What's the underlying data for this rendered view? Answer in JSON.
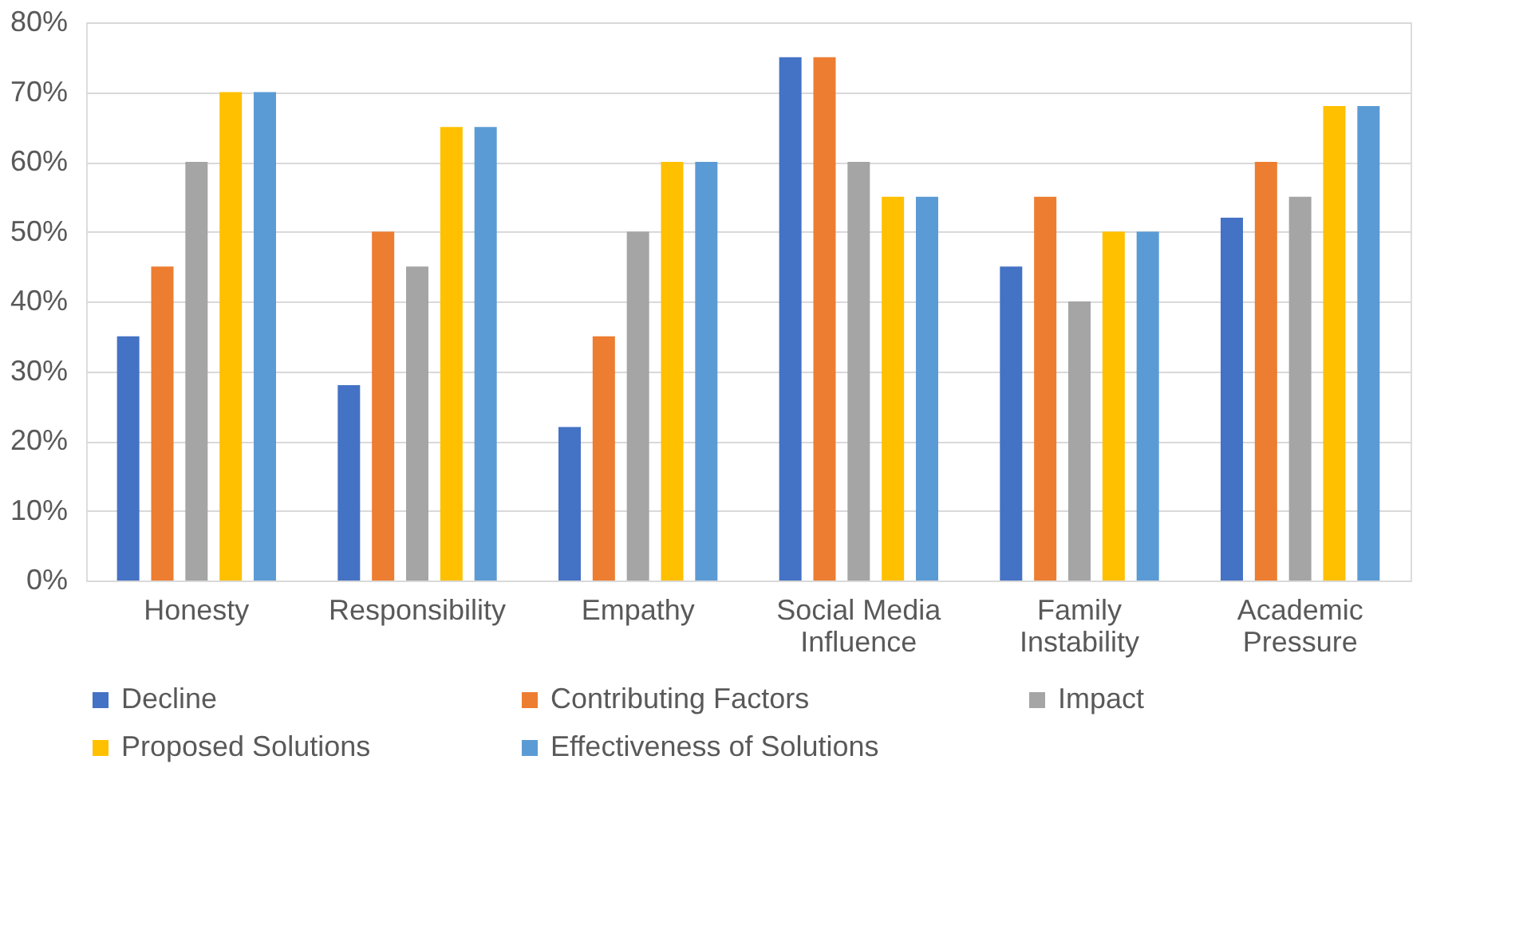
{
  "chart_data": {
    "type": "bar",
    "categories": [
      "Honesty",
      "Responsibility",
      "Empathy",
      "Social Media Influence",
      "Family Instability",
      "Academic Pressure"
    ],
    "series": [
      {
        "name": "Decline",
        "color": "#4472c4",
        "values": [
          35,
          28,
          22,
          75,
          45,
          52
        ]
      },
      {
        "name": "Contributing Factors",
        "color": "#ed7d31",
        "values": [
          45,
          50,
          35,
          75,
          55,
          60
        ]
      },
      {
        "name": "Impact",
        "color": "#a5a5a5",
        "values": [
          60,
          45,
          50,
          60,
          40,
          55
        ]
      },
      {
        "name": "Proposed Solutions",
        "color": "#ffc000",
        "values": [
          70,
          65,
          60,
          55,
          50,
          68
        ]
      },
      {
        "name": "Effectiveness of Solutions",
        "color": "#5b9bd5",
        "values": [
          70,
          65,
          60,
          55,
          50,
          68
        ]
      }
    ],
    "ylim": [
      0,
      80
    ],
    "yticks": [
      {
        "value": 0,
        "label": "0%"
      },
      {
        "value": 10,
        "label": "10%"
      },
      {
        "value": 20,
        "label": "20%"
      },
      {
        "value": 30,
        "label": "30%"
      },
      {
        "value": 40,
        "label": "40%"
      },
      {
        "value": 50,
        "label": "50%"
      },
      {
        "value": 60,
        "label": "60%"
      },
      {
        "value": 70,
        "label": "70%"
      },
      {
        "value": 80,
        "label": "80%"
      }
    ],
    "grid": "y",
    "legend": "bottom"
  }
}
